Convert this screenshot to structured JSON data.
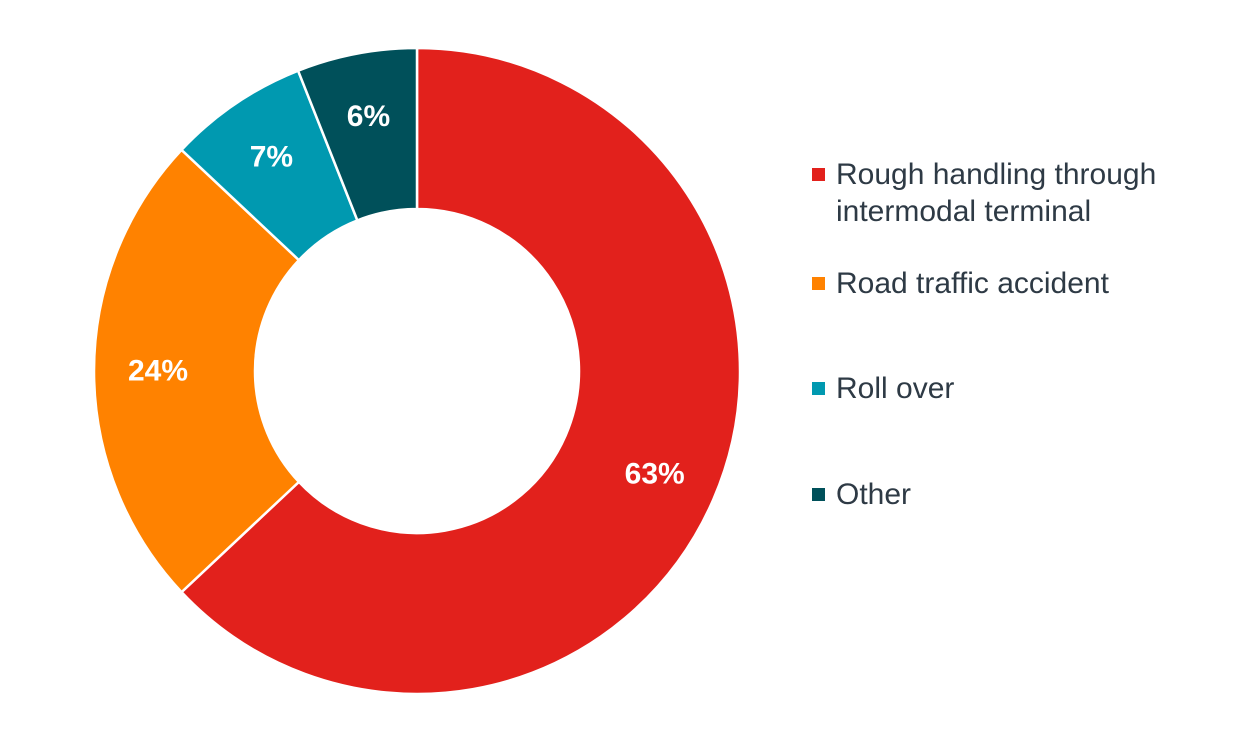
{
  "chart_data": {
    "type": "pie",
    "variant": "donut",
    "title": "",
    "categories": [
      "Rough handling through intermodal terminal",
      "Road traffic accident",
      "Roll over",
      "Other"
    ],
    "values": [
      63,
      24,
      7,
      6
    ],
    "data_labels": [
      "63%",
      "24%",
      "7%",
      "6%"
    ],
    "colors": [
      "#e2211c",
      "#ff8200",
      "#0099b0",
      "#00505a"
    ],
    "legend_position": "right",
    "start": "top, clockwise"
  },
  "legend": {
    "items": [
      {
        "label_line1": "Rough handling through",
        "label_line2": "intermodal terminal",
        "color": "#e2211c"
      },
      {
        "label_line1": "Road traffic accident",
        "label_line2": "",
        "color": "#ff8200"
      },
      {
        "label_line1": "Roll over",
        "label_line2": "",
        "color": "#0099b0"
      },
      {
        "label_line1": "Other",
        "label_line2": "",
        "color": "#00505a"
      }
    ]
  }
}
